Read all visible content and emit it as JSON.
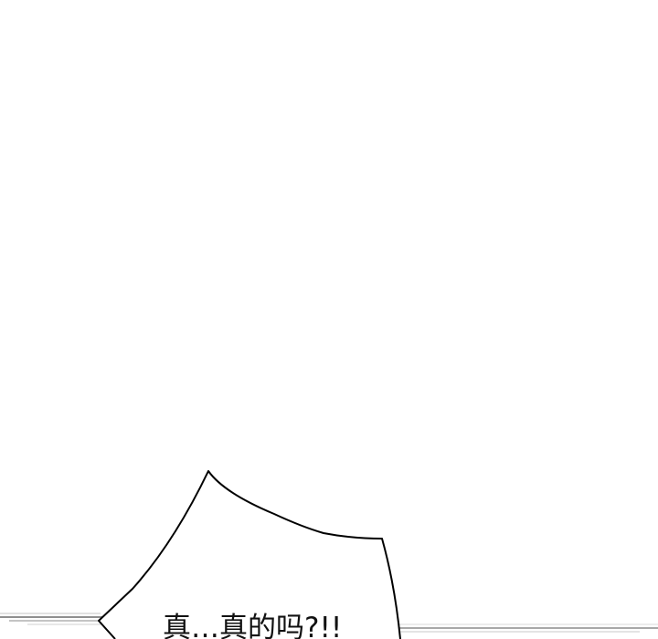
{
  "speech_bubble": {
    "text": "真…真的吗?!!"
  },
  "colors": {
    "background": "#ffffff",
    "outline": "#000000",
    "text": "#111111",
    "speed_lines": "#9a9a9a"
  }
}
